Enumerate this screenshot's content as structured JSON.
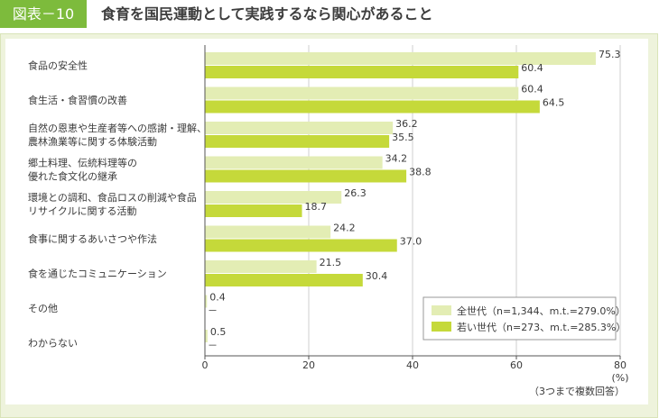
{
  "header": {
    "figure_label": "図表－10",
    "title": "食育を国民運動として実践するなら関心があること"
  },
  "colors": {
    "badge": "#7dbb3c",
    "series_all": "#e3edb4",
    "series_young": "#c5d93a",
    "panel_bg": "#eef3dc"
  },
  "chart_data": {
    "type": "bar",
    "orientation": "horizontal",
    "categories": [
      [
        "食品の安全性"
      ],
      [
        "食生活・食習慣の改善"
      ],
      [
        "自然の恩恵や生産者等への感謝・理解、",
        "農林漁業等に関する体験活動"
      ],
      [
        "郷土料理、伝統料理等の",
        "優れた食文化の継承"
      ],
      [
        "環境との調和、食品ロスの削減や食品",
        "リサイクルに関する活動"
      ],
      [
        "食事に関するあいさつや作法"
      ],
      [
        "食を通じたコミュニケーション"
      ],
      [
        "その他"
      ],
      [
        "わからない"
      ]
    ],
    "series": [
      {
        "name": "全世代（n=1,344、m.t.=279.0%）",
        "values": [
          75.3,
          60.4,
          36.2,
          34.2,
          26.3,
          24.2,
          21.5,
          0.4,
          0.5
        ],
        "labels": [
          "75.3",
          "60.4",
          "36.2",
          "34.2",
          "26.3",
          "24.2",
          "21.5",
          "0.4",
          "0.5"
        ],
        "color": "#e3edb4"
      },
      {
        "name": "若い世代（n=273、m.t.=285.3%）",
        "values": [
          60.4,
          64.5,
          35.5,
          38.8,
          18.7,
          37.0,
          30.4,
          0,
          0
        ],
        "labels": [
          "60.4",
          "64.5",
          "35.5",
          "38.8",
          "18.7",
          "37.0",
          "30.4",
          "－",
          "－"
        ],
        "color": "#c5d93a"
      }
    ],
    "xlim": [
      0,
      80
    ],
    "xticks": [
      "0",
      "20",
      "40",
      "60",
      "80"
    ],
    "unit": "(%)",
    "note": "（3つまで複数回答）",
    "grid": true,
    "legend_position": "bottom-right"
  }
}
